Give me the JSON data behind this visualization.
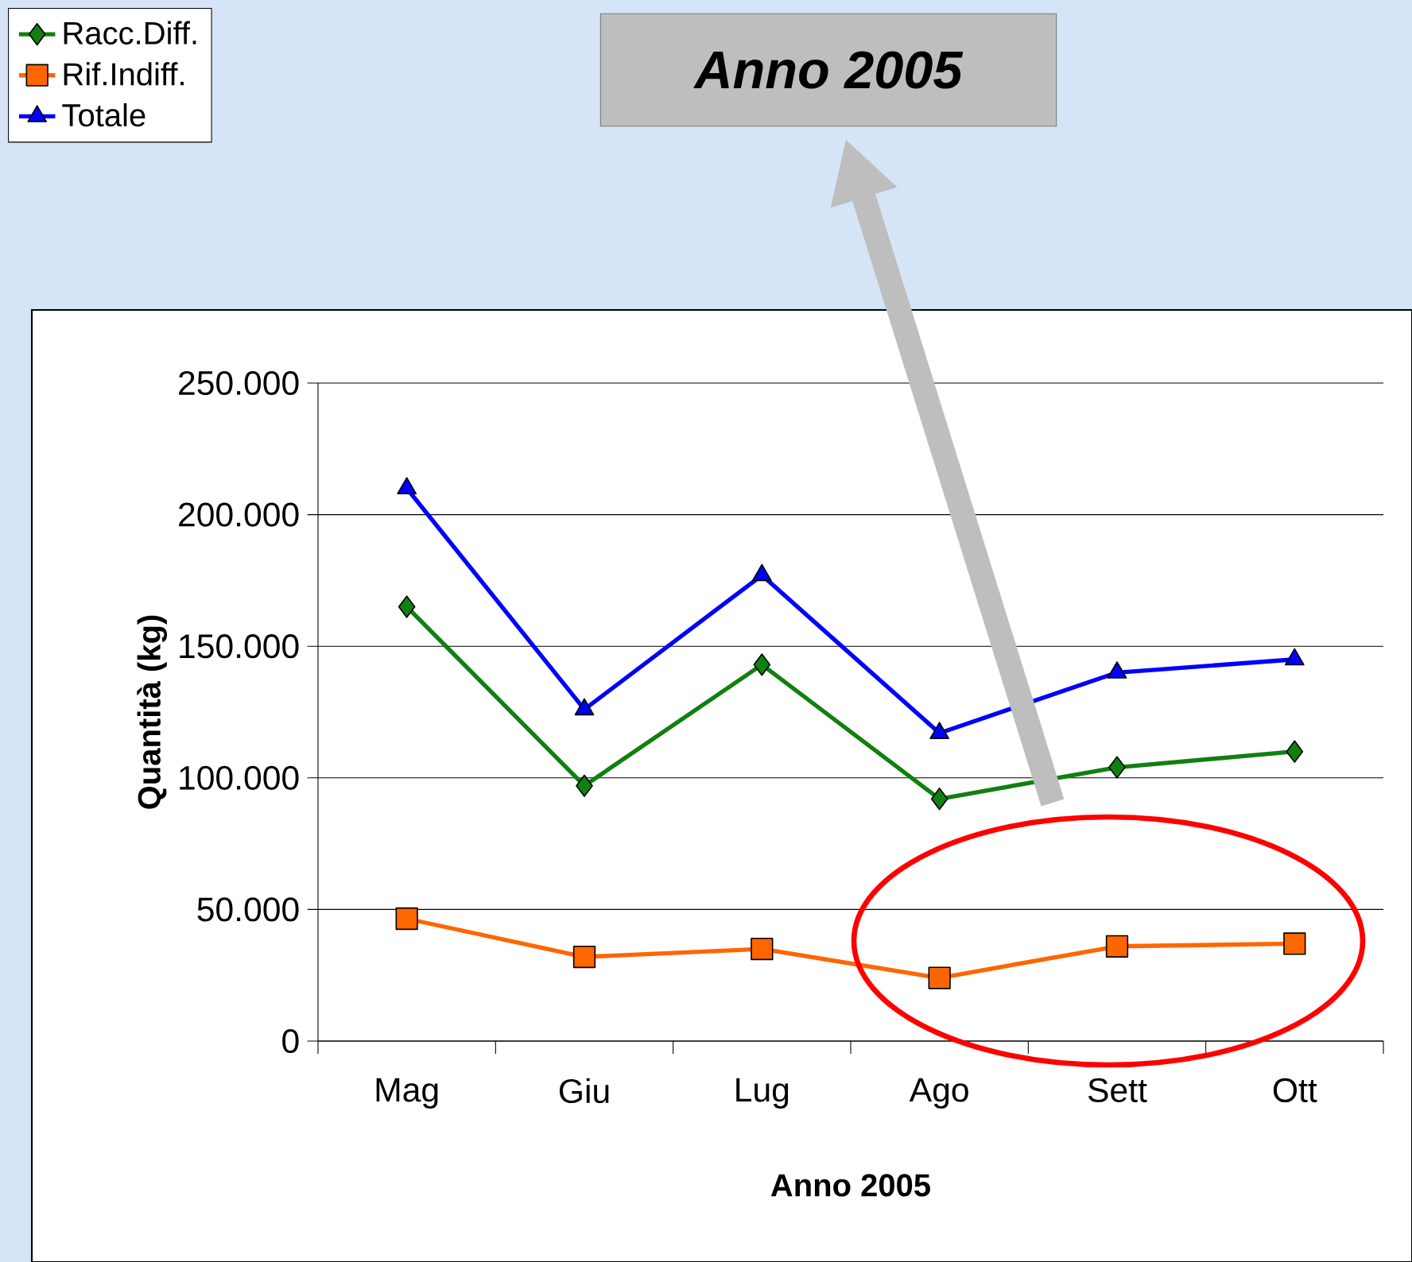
{
  "chart_data": {
    "type": "line",
    "xlabel": "Anno 2005",
    "ylabel": "Quantità (kg)",
    "annotations": [
      "Anno 2005"
    ],
    "categories": [
      "Mag",
      "Giu",
      "Lug",
      "Ago",
      "Sett",
      "Ott"
    ],
    "series": [
      {
        "name": "Racc.Diff.",
        "color": "#108010",
        "marker": "diamond",
        "values": [
          165000,
          97000,
          143000,
          92000,
          104000,
          110000
        ]
      },
      {
        "name": "Rif.Indiff.",
        "color": "#ff6600",
        "marker": "square",
        "values": [
          46500,
          32000,
          35000,
          24000,
          36000,
          37000
        ]
      },
      {
        "name": "Totale",
        "color": "#0000ff",
        "marker": "triangle",
        "values": [
          210000,
          126000,
          177000,
          117000,
          140000,
          145000
        ]
      }
    ],
    "ylim": [
      0,
      250000
    ],
    "yticks": [
      0,
      {
        "value": 50000,
        "label": "50.000"
      },
      {
        "value": 100000,
        "label": "100.000"
      },
      {
        "value": 150000,
        "label": "150.000"
      },
      {
        "value": 200000,
        "label": "200.000"
      },
      {
        "value": 250000,
        "label": "250.000"
      }
    ],
    "grid": "y",
    "legend": "top left",
    "line_style": "solid"
  }
}
